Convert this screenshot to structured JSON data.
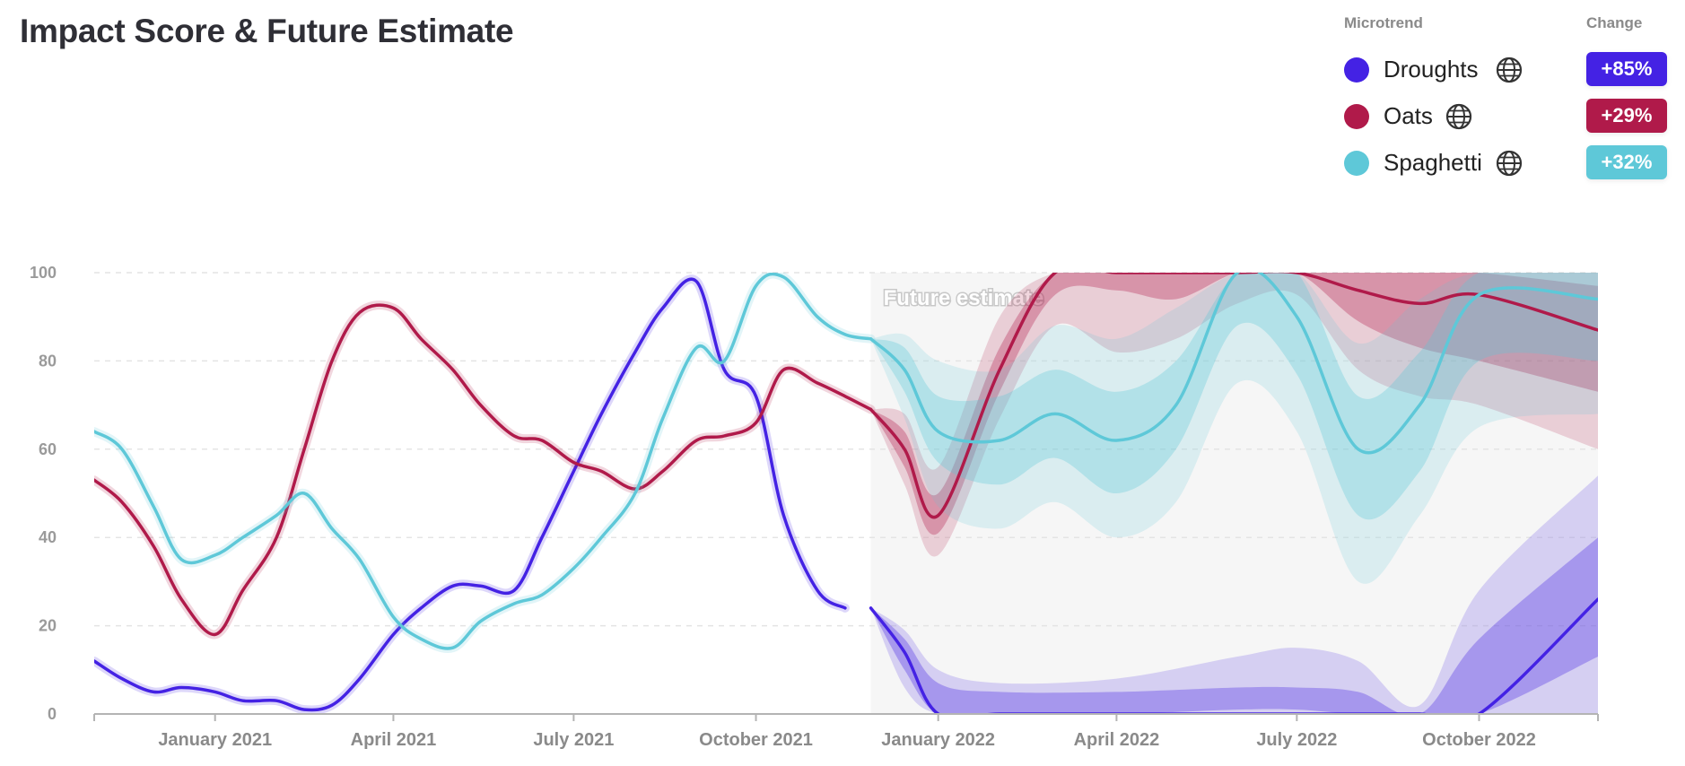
{
  "chart_data": {
    "type": "line",
    "title": "Impact Score & Future Estimate",
    "ylim": [
      0,
      100
    ],
    "y_ticks": [
      0,
      20,
      40,
      60,
      80,
      100
    ],
    "x_start": "2020-11-01",
    "x_end": "2022-11-30",
    "forecast_start": "2021-11-28",
    "future_label": "Future estimate",
    "grid": true,
    "x_ticks": [
      {
        "label": "January 2021",
        "date": "2021-01-01"
      },
      {
        "label": "April 2021",
        "date": "2021-04-01"
      },
      {
        "label": "July 2021",
        "date": "2021-07-01"
      },
      {
        "label": "October 2021",
        "date": "2021-10-01"
      },
      {
        "label": "January 2022",
        "date": "2022-01-01"
      },
      {
        "label": "April 2022",
        "date": "2022-04-01"
      },
      {
        "label": "July 2022",
        "date": "2022-07-01"
      },
      {
        "label": "October 2022",
        "date": "2022-10-01"
      }
    ],
    "legend_header": "Microtrend",
    "change_header": "Change",
    "series": [
      {
        "name": "Droughts",
        "color": "#4422e4",
        "change": "+85%",
        "history": [
          [
            "2020-11-01",
            12
          ],
          [
            "2020-11-15",
            8
          ],
          [
            "2020-12-01",
            5
          ],
          [
            "2020-12-15",
            6
          ],
          [
            "2021-01-01",
            5
          ],
          [
            "2021-01-15",
            3
          ],
          [
            "2021-02-01",
            3
          ],
          [
            "2021-02-15",
            1
          ],
          [
            "2021-03-01",
            2
          ],
          [
            "2021-03-15",
            8
          ],
          [
            "2021-04-01",
            18
          ],
          [
            "2021-04-15",
            24
          ],
          [
            "2021-05-01",
            29
          ],
          [
            "2021-05-15",
            29
          ],
          [
            "2021-06-01",
            28
          ],
          [
            "2021-06-15",
            40
          ],
          [
            "2021-07-01",
            55
          ],
          [
            "2021-07-15",
            68
          ],
          [
            "2021-08-01",
            82
          ],
          [
            "2021-08-15",
            92
          ],
          [
            "2021-09-01",
            98
          ],
          [
            "2021-09-15",
            78
          ],
          [
            "2021-10-01",
            72
          ],
          [
            "2021-10-15",
            45
          ],
          [
            "2021-11-01",
            28
          ],
          [
            "2021-11-15",
            24
          ]
        ],
        "forecast": [
          [
            "2021-11-28",
            24,
            24,
            24,
            24,
            24
          ],
          [
            "2021-12-15",
            14,
            10,
            17,
            6,
            19
          ],
          [
            "2022-01-01",
            0,
            0,
            7,
            0,
            10
          ],
          [
            "2022-02-01",
            0,
            0,
            5,
            0,
            7
          ],
          [
            "2022-04-01",
            0,
            0,
            5,
            0,
            8
          ],
          [
            "2022-06-01",
            0,
            1,
            6,
            0,
            13
          ],
          [
            "2022-07-01",
            0,
            1,
            6,
            0,
            15
          ],
          [
            "2022-08-01",
            0,
            0,
            5,
            0,
            12
          ],
          [
            "2022-09-01",
            0,
            0,
            0,
            0,
            2
          ],
          [
            "2022-10-01",
            0,
            0,
            17,
            0,
            28
          ],
          [
            "2022-11-30",
            26,
            13,
            40,
            0,
            54
          ]
        ]
      },
      {
        "name": "Oats",
        "color": "#b01a4a",
        "change": "+29%",
        "history": [
          [
            "2020-11-01",
            53
          ],
          [
            "2020-11-15",
            48
          ],
          [
            "2020-12-01",
            38
          ],
          [
            "2020-12-15",
            26
          ],
          [
            "2021-01-01",
            18
          ],
          [
            "2021-01-15",
            28
          ],
          [
            "2021-02-01",
            40
          ],
          [
            "2021-02-15",
            60
          ],
          [
            "2021-03-01",
            80
          ],
          [
            "2021-03-15",
            91
          ],
          [
            "2021-04-01",
            92
          ],
          [
            "2021-04-15",
            85
          ],
          [
            "2021-05-01",
            78
          ],
          [
            "2021-05-15",
            70
          ],
          [
            "2021-06-01",
            63
          ],
          [
            "2021-06-15",
            62
          ],
          [
            "2021-07-01",
            57
          ],
          [
            "2021-07-15",
            55
          ],
          [
            "2021-08-01",
            51
          ],
          [
            "2021-08-15",
            55
          ],
          [
            "2021-09-01",
            62
          ],
          [
            "2021-09-15",
            63
          ],
          [
            "2021-10-01",
            66
          ],
          [
            "2021-10-15",
            78
          ],
          [
            "2021-11-01",
            75
          ],
          [
            "2021-11-15",
            72
          ],
          [
            "2021-11-28",
            69
          ]
        ],
        "forecast": [
          [
            "2021-11-28",
            69,
            69,
            69,
            69,
            69
          ],
          [
            "2021-12-15",
            60,
            56,
            64,
            52,
            68
          ],
          [
            "2022-01-01",
            45,
            41,
            50,
            36,
            56
          ],
          [
            "2022-02-01",
            78,
            73,
            83,
            67,
            90
          ],
          [
            "2022-03-01",
            100,
            95,
            100,
            88,
            100
          ],
          [
            "2022-04-01",
            100,
            96,
            100,
            82,
            100
          ],
          [
            "2022-05-01",
            100,
            94,
            100,
            85,
            100
          ],
          [
            "2022-06-01",
            100,
            100,
            100,
            93,
            100
          ],
          [
            "2022-07-01",
            100,
            100,
            100,
            95,
            100
          ],
          [
            "2022-08-01",
            96,
            89,
            100,
            78,
            100
          ],
          [
            "2022-09-01",
            93,
            83,
            100,
            72,
            100
          ],
          [
            "2022-10-01",
            95,
            80,
            100,
            70,
            100
          ],
          [
            "2022-11-30",
            87,
            73,
            97,
            60,
            100
          ]
        ]
      },
      {
        "name": "Spaghetti",
        "color": "#5ec8d8",
        "change": "+32%",
        "history": [
          [
            "2020-11-01",
            64
          ],
          [
            "2020-11-15",
            60
          ],
          [
            "2020-12-01",
            47
          ],
          [
            "2020-12-15",
            35
          ],
          [
            "2021-01-01",
            36
          ],
          [
            "2021-01-15",
            40
          ],
          [
            "2021-02-01",
            45
          ],
          [
            "2021-02-15",
            50
          ],
          [
            "2021-03-01",
            42
          ],
          [
            "2021-03-15",
            35
          ],
          [
            "2021-04-01",
            22
          ],
          [
            "2021-04-15",
            17
          ],
          [
            "2021-05-01",
            15
          ],
          [
            "2021-05-15",
            21
          ],
          [
            "2021-06-01",
            25
          ],
          [
            "2021-06-15",
            27
          ],
          [
            "2021-07-01",
            33
          ],
          [
            "2021-07-15",
            40
          ],
          [
            "2021-08-01",
            50
          ],
          [
            "2021-08-15",
            67
          ],
          [
            "2021-09-01",
            83
          ],
          [
            "2021-09-15",
            80
          ],
          [
            "2021-10-01",
            97
          ],
          [
            "2021-10-15",
            99
          ],
          [
            "2021-11-01",
            90
          ],
          [
            "2021-11-15",
            86
          ],
          [
            "2021-11-28",
            85
          ]
        ],
        "forecast": [
          [
            "2021-11-28",
            85,
            85,
            85,
            85,
            85
          ],
          [
            "2021-12-15",
            78,
            73,
            83,
            67,
            86
          ],
          [
            "2022-01-01",
            64,
            57,
            72,
            47,
            80
          ],
          [
            "2022-02-01",
            62,
            52,
            72,
            42,
            78
          ],
          [
            "2022-03-01",
            68,
            58,
            78,
            48,
            88
          ],
          [
            "2022-04-01",
            62,
            50,
            73,
            40,
            85
          ],
          [
            "2022-05-01",
            70,
            60,
            80,
            48,
            92
          ],
          [
            "2022-06-01",
            100,
            88,
            100,
            75,
            100
          ],
          [
            "2022-07-01",
            90,
            77,
            100,
            64,
            100
          ],
          [
            "2022-08-01",
            60,
            45,
            72,
            30,
            84
          ],
          [
            "2022-09-01",
            70,
            55,
            82,
            45,
            94
          ],
          [
            "2022-10-01",
            95,
            80,
            100,
            65,
            100
          ],
          [
            "2022-11-30",
            94,
            80,
            100,
            68,
            100
          ]
        ]
      }
    ]
  }
}
